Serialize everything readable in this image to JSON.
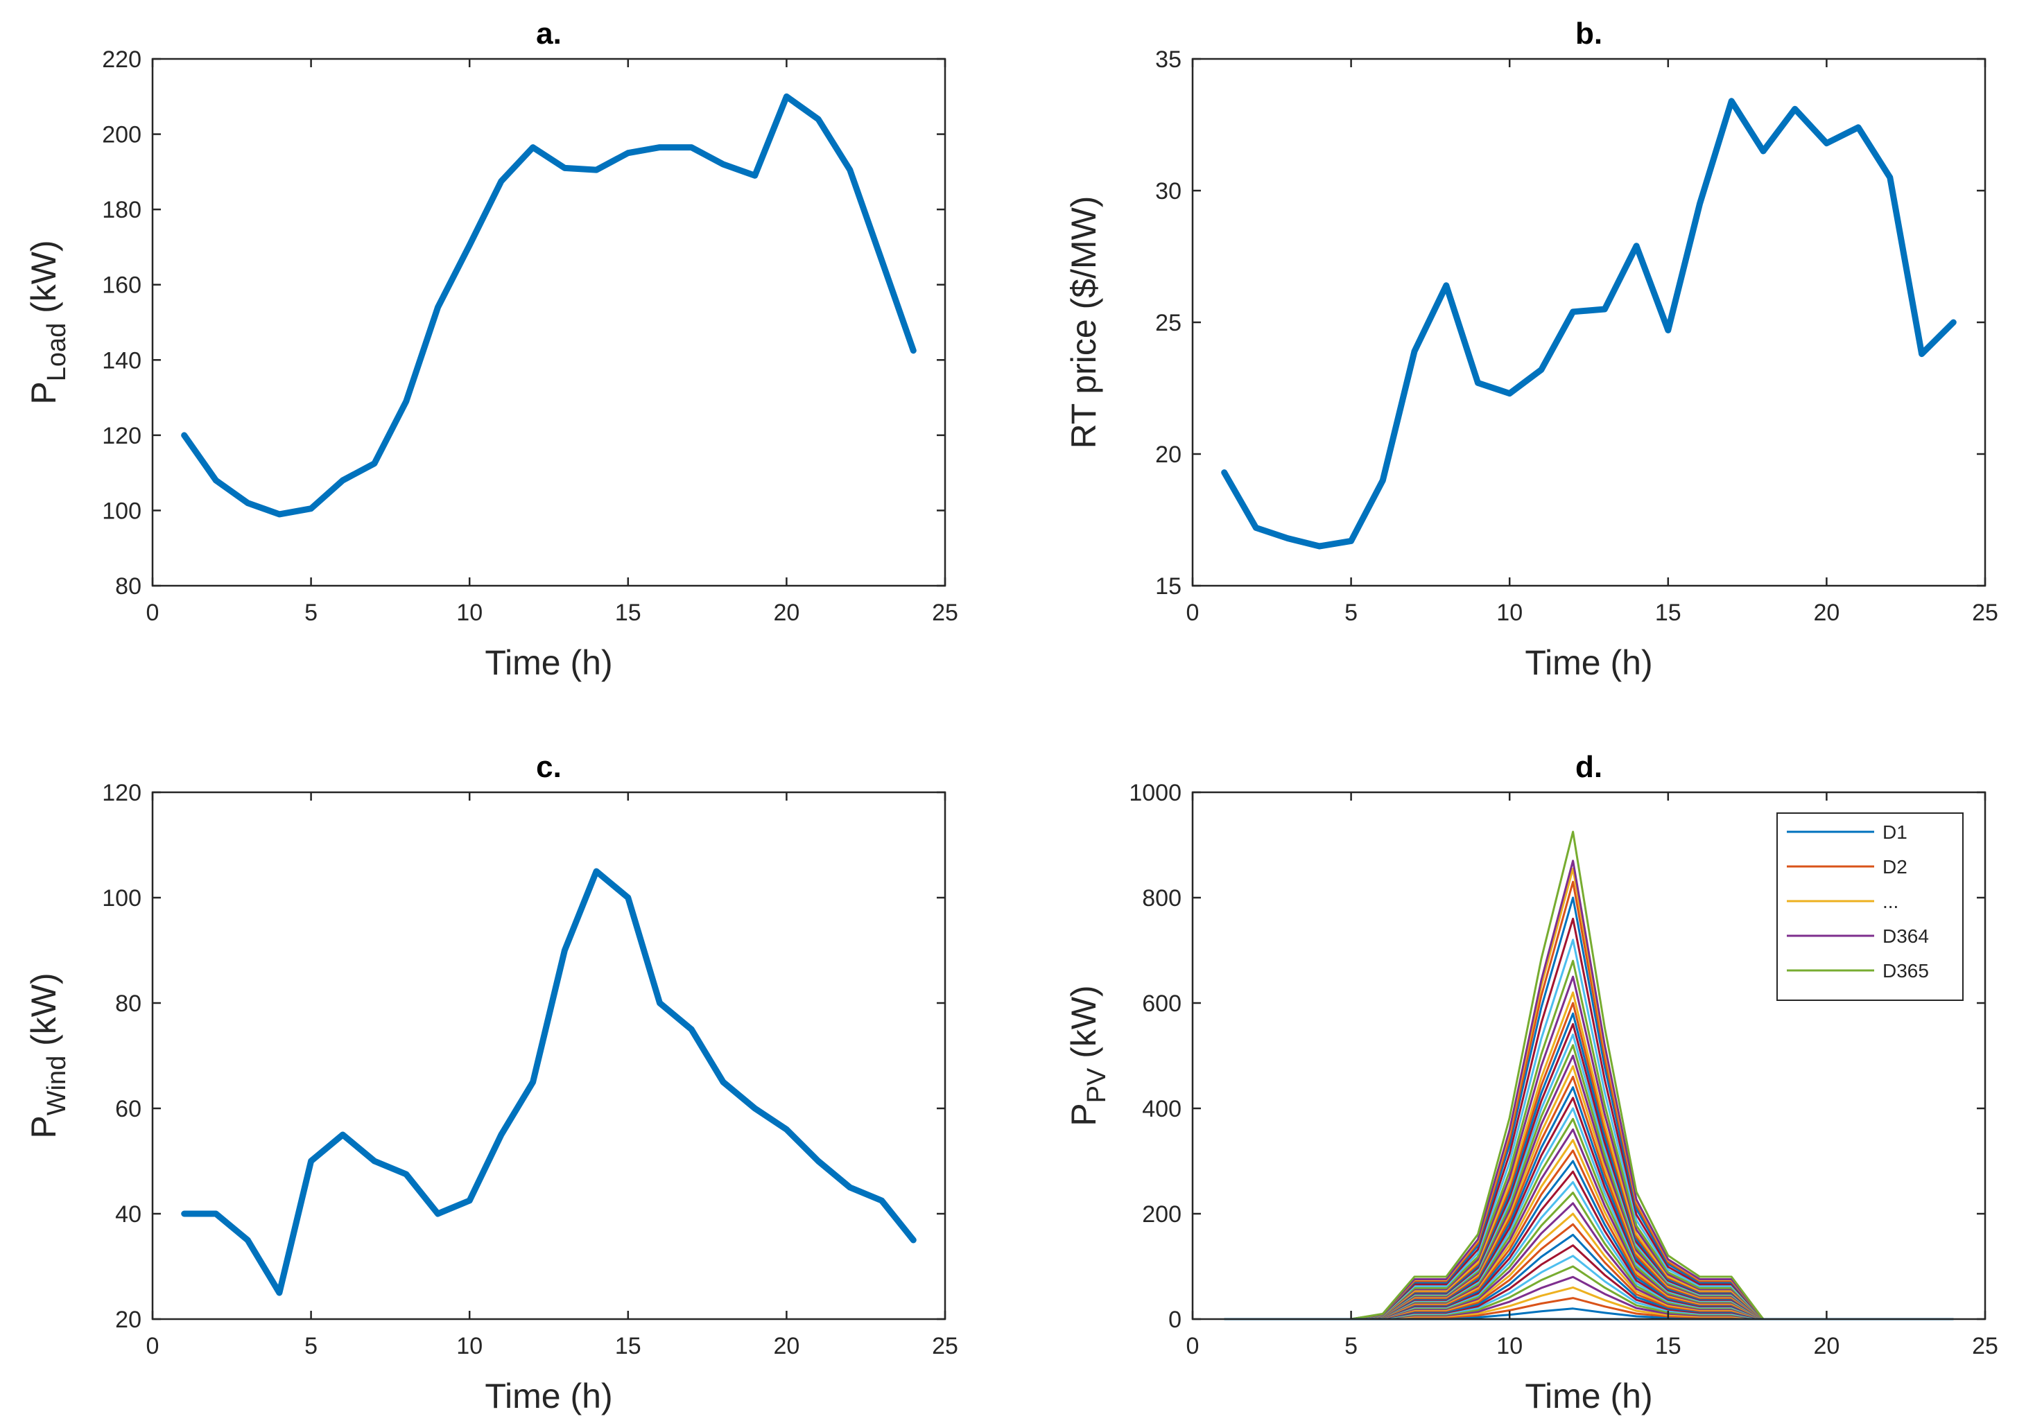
{
  "figure": {
    "panels": [
      "a",
      "b",
      "c",
      "d"
    ]
  },
  "chart_data": [
    {
      "id": "a",
      "type": "line",
      "title": "a.",
      "xlabel": "Time (h)",
      "ylabel_main": "P",
      "ylabel_sub": "Load",
      "ylabel_unit": " (kW)",
      "xlim": [
        0,
        25
      ],
      "ylim": [
        80,
        220
      ],
      "xticks": [
        0,
        5,
        10,
        15,
        20,
        25
      ],
      "yticks": [
        80,
        100,
        120,
        140,
        160,
        180,
        200,
        220
      ],
      "color": "#0072BD",
      "series": [
        {
          "name": "P_Load",
          "x": [
            1,
            2,
            3,
            4,
            5,
            6,
            7,
            8,
            9,
            10,
            11,
            12,
            13,
            14,
            15,
            16,
            17,
            18,
            19,
            20,
            21,
            22,
            23,
            24
          ],
          "values": [
            120,
            108,
            102,
            99,
            100.5,
            108,
            112.5,
            129,
            154,
            170.5,
            187.5,
            196.5,
            191,
            190.5,
            195,
            196.5,
            196.5,
            192,
            189,
            210,
            204,
            190.5,
            166.5,
            142.5
          ]
        }
      ]
    },
    {
      "id": "b",
      "type": "line",
      "title": "b.",
      "xlabel": "Time (h)",
      "ylabel_main": "RT price ($/MW)",
      "ylabel_sub": "",
      "ylabel_unit": "",
      "xlim": [
        0,
        25
      ],
      "ylim": [
        15,
        35
      ],
      "xticks": [
        0,
        5,
        10,
        15,
        20,
        25
      ],
      "yticks": [
        15,
        20,
        25,
        30,
        35
      ],
      "color": "#0072BD",
      "series": [
        {
          "name": "RT price",
          "x": [
            1,
            2,
            3,
            4,
            5,
            6,
            7,
            8,
            9,
            10,
            11,
            12,
            13,
            14,
            15,
            16,
            17,
            18,
            19,
            20,
            21,
            22,
            23,
            24
          ],
          "values": [
            19.3,
            17.2,
            16.8,
            16.5,
            16.7,
            19,
            23.9,
            26.4,
            22.7,
            22.3,
            23.2,
            25.4,
            25.5,
            27.9,
            24.7,
            29.5,
            33.4,
            31.5,
            33.1,
            31.8,
            32.4,
            30.5,
            23.8,
            25
          ]
        }
      ]
    },
    {
      "id": "c",
      "type": "line",
      "title": "c.",
      "xlabel": "Time (h)",
      "ylabel_main": "P",
      "ylabel_sub": "Wind",
      "ylabel_unit": " (kW)",
      "xlim": [
        0,
        25
      ],
      "ylim": [
        20,
        120
      ],
      "xticks": [
        0,
        5,
        10,
        15,
        20,
        25
      ],
      "yticks": [
        20,
        40,
        60,
        80,
        100,
        120
      ],
      "color": "#0072BD",
      "series": [
        {
          "name": "P_Wind",
          "x": [
            1,
            2,
            3,
            4,
            5,
            6,
            7,
            8,
            9,
            10,
            11,
            12,
            13,
            14,
            15,
            16,
            17,
            18,
            19,
            20,
            21,
            22,
            23,
            24
          ],
          "values": [
            40,
            40,
            35,
            25,
            50,
            55,
            50,
            47.5,
            40,
            42.5,
            55,
            65,
            90,
            105,
            100,
            80,
            75,
            65,
            60,
            56,
            50,
            45,
            42.5,
            35
          ]
        }
      ]
    },
    {
      "id": "d",
      "type": "line",
      "title": "d.",
      "xlabel": "Time (h)",
      "ylabel_main": "P",
      "ylabel_sub": "PV",
      "ylabel_unit": " (kW)",
      "xlim": [
        0,
        25
      ],
      "ylim": [
        0,
        1000
      ],
      "xticks": [
        0,
        5,
        10,
        15,
        20,
        25
      ],
      "yticks": [
        0,
        200,
        400,
        600,
        800,
        1000
      ],
      "x": [
        1,
        2,
        3,
        4,
        5,
        6,
        7,
        8,
        9,
        10,
        11,
        12,
        13,
        14,
        15,
        16,
        17,
        18,
        19,
        20,
        21,
        22,
        23,
        24
      ],
      "profile": [
        0,
        0,
        0,
        0,
        0,
        0.01,
        0.08,
        0.08,
        0.16,
        0.38,
        0.68,
        0.92,
        0.55,
        0.24,
        0.12,
        0.08,
        0.08,
        0,
        0,
        0,
        0,
        0,
        0,
        0
      ],
      "series_count": 365,
      "series_peaks": [
        20,
        40,
        60,
        80,
        100,
        120,
        140,
        160,
        180,
        200,
        220,
        240,
        260,
        280,
        300,
        320,
        340,
        360,
        380,
        400,
        420,
        440,
        460,
        480,
        500,
        520,
        540,
        560,
        580,
        600,
        620,
        650,
        680,
        720,
        760,
        800,
        830,
        855,
        870,
        925
      ],
      "palette": [
        "#0072BD",
        "#D95319",
        "#EDB120",
        "#7E2F8E",
        "#77AC30",
        "#4DBEEE",
        "#A2142F"
      ],
      "legend": {
        "position": "top-right",
        "entries": [
          {
            "label": "D1",
            "color": "#0072BD"
          },
          {
            "label": "D2",
            "color": "#D95319"
          },
          {
            "label": "...",
            "color": "#EDB120"
          },
          {
            "label": "D364",
            "color": "#7E2F8E"
          },
          {
            "label": "D365",
            "color": "#77AC30"
          }
        ]
      }
    }
  ]
}
